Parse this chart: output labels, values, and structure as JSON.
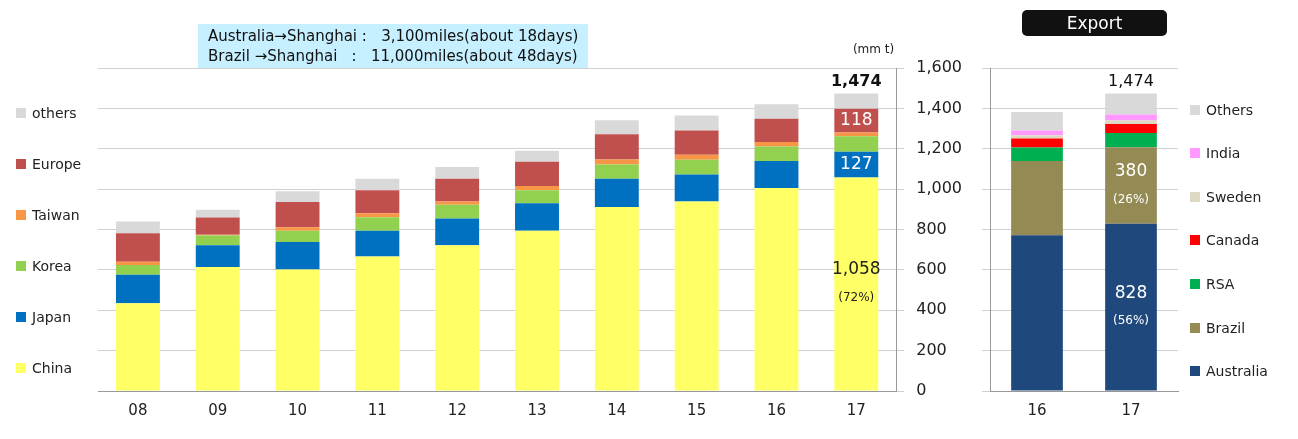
{
  "chart_data": [
    {
      "type": "bar",
      "stacked": true,
      "ylabel": "(mm t)",
      "categories": [
        "08",
        "09",
        "10",
        "11",
        "12",
        "13",
        "14",
        "15",
        "16",
        "17"
      ],
      "ylim": [
        0,
        1600
      ],
      "yticks": [
        0,
        200,
        400,
        600,
        800,
        {
          "value": 1000,
          "label": "1,000"
        },
        {
          "value": 1200,
          "label": "1,200"
        },
        {
          "value": 1400,
          "label": "1,400"
        },
        {
          "value": 1600,
          "label": "1,600"
        }
      ],
      "grid": "y",
      "legend": "left",
      "annotations": [
        "Australia→Shanghai :   3,100miles(about 18days)",
        "Brazil →Shanghai   :   11,000miles(about 48days)"
      ],
      "totals": [
        null,
        null,
        null,
        null,
        null,
        null,
        null,
        null,
        null,
        "1,474"
      ],
      "series": [
        {
          "name": "China",
          "color": "#ffff66",
          "values": [
            435,
            614,
            602,
            666,
            722,
            794,
            912,
            939,
            1006,
            1058
          ],
          "value_labels": [
            null,
            null,
            null,
            null,
            null,
            null,
            null,
            null,
            null,
            "1,058 (72%)"
          ]
        },
        {
          "name": "Japan",
          "color": "#0070c0",
          "values": [
            141,
            108,
            136,
            128,
            132,
            136,
            139,
            133,
            133,
            127
          ],
          "value_labels": [
            null,
            null,
            null,
            null,
            null,
            null,
            null,
            null,
            null,
            "127"
          ]
        },
        {
          "name": "Korea",
          "color": "#92d050",
          "values": [
            48,
            48,
            56,
            67,
            69,
            65,
            71,
            74,
            72,
            77
          ]
        },
        {
          "name": "Taiwan",
          "color": "#f79646",
          "values": [
            16,
            4,
            17,
            19,
            16,
            21,
            25,
            24,
            23,
            18
          ]
        },
        {
          "name": "Europe",
          "color": "#c0504d",
          "values": [
            141,
            85,
            125,
            115,
            112,
            120,
            125,
            120,
            115,
            118
          ],
          "value_labels": [
            null,
            null,
            null,
            null,
            null,
            null,
            null,
            null,
            null,
            "118"
          ]
        },
        {
          "name": "others",
          "color": "#d9d9d9",
          "values": [
            59,
            39,
            54,
            56,
            58,
            54,
            69,
            75,
            72,
            76
          ]
        }
      ]
    },
    {
      "type": "bar",
      "stacked": true,
      "title": "Export",
      "categories": [
        "16",
        "17"
      ],
      "ylim": [
        0,
        1600
      ],
      "yticks": [
        0,
        200,
        400,
        600,
        800,
        1000,
        1200,
        1400,
        1600
      ],
      "tick_labels": "x",
      "grid": "y",
      "legend": "right",
      "totals": [
        null,
        "1,474"
      ],
      "series": [
        {
          "name": "Australia",
          "color": "#1f497d",
          "values": [
            771,
            828
          ],
          "value_labels": [
            null,
            "828 (56%)"
          ]
        },
        {
          "name": "Brazil",
          "color": "#948a54",
          "values": [
            368,
            380
          ],
          "value_labels": [
            null,
            "380 (26%)"
          ]
        },
        {
          "name": "RSA",
          "color": "#00b050",
          "values": [
            67,
            70
          ]
        },
        {
          "name": "Canada",
          "color": "#ff0000",
          "values": [
            45,
            45
          ]
        },
        {
          "name": "Sweden",
          "color": "#ddd9c3",
          "values": [
            16,
            17
          ]
        },
        {
          "name": "India",
          "color": "#ff99ff",
          "values": [
            24,
            30
          ]
        },
        {
          "name": "Others",
          "color": "#d9d9d9",
          "values": [
            91,
            104
          ]
        }
      ]
    }
  ]
}
